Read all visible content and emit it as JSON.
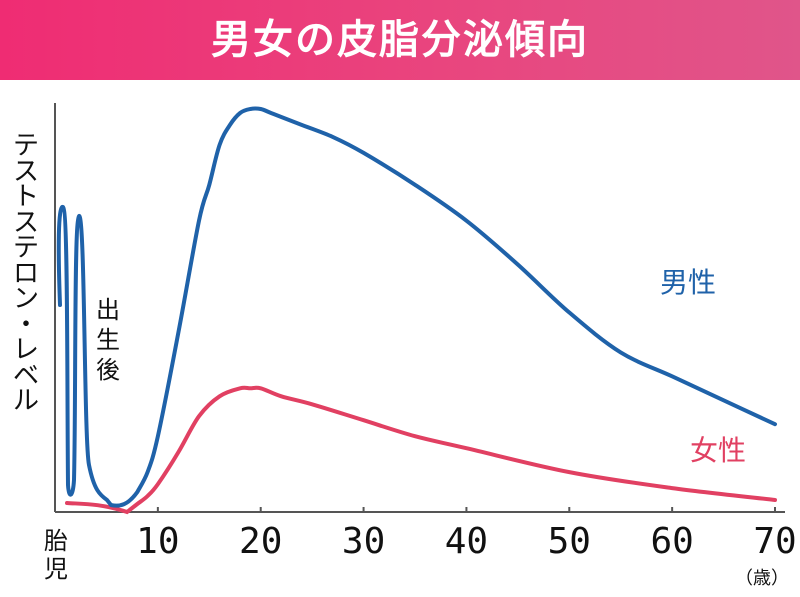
{
  "title": "男女の皮脂分泌傾向",
  "chart_data": {
    "type": "line",
    "title": "男女の皮脂分泌傾向",
    "ylabel": "テストステロン・レベル",
    "xlabel": "",
    "x_unit": "（歳）",
    "x_start_label": "胎児",
    "annotation": "出生後",
    "xticks": [
      10,
      20,
      30,
      40,
      50,
      60,
      70
    ],
    "xlim": [
      0,
      70
    ],
    "y_axis_numeric": false,
    "grid": false,
    "series": [
      {
        "name": "男性",
        "color": "#1f62a9",
        "x": [
          8,
          9,
          10,
          12,
          14,
          15,
          16,
          17,
          18,
          19,
          20,
          21,
          22,
          24,
          27,
          30,
          35,
          40,
          45,
          50,
          55,
          60,
          65,
          70
        ],
        "y": [
          0.05,
          0.1,
          0.19,
          0.45,
          0.73,
          0.82,
          0.92,
          0.97,
          1.0,
          1.01,
          1.01,
          1.0,
          0.99,
          0.97,
          0.94,
          0.9,
          0.82,
          0.73,
          0.62,
          0.5,
          0.4,
          0.34,
          0.28,
          0.22
        ]
      },
      {
        "name": "女性",
        "color": "#e14062",
        "x": [
          7,
          8,
          9,
          10,
          12,
          14,
          16,
          18,
          19,
          20,
          22,
          25,
          30,
          35,
          40,
          50,
          60,
          70
        ],
        "y": [
          0.0,
          0.02,
          0.04,
          0.07,
          0.15,
          0.24,
          0.29,
          0.31,
          0.31,
          0.31,
          0.29,
          0.27,
          0.23,
          0.19,
          0.16,
          0.1,
          0.06,
          0.03
        ]
      }
    ]
  }
}
